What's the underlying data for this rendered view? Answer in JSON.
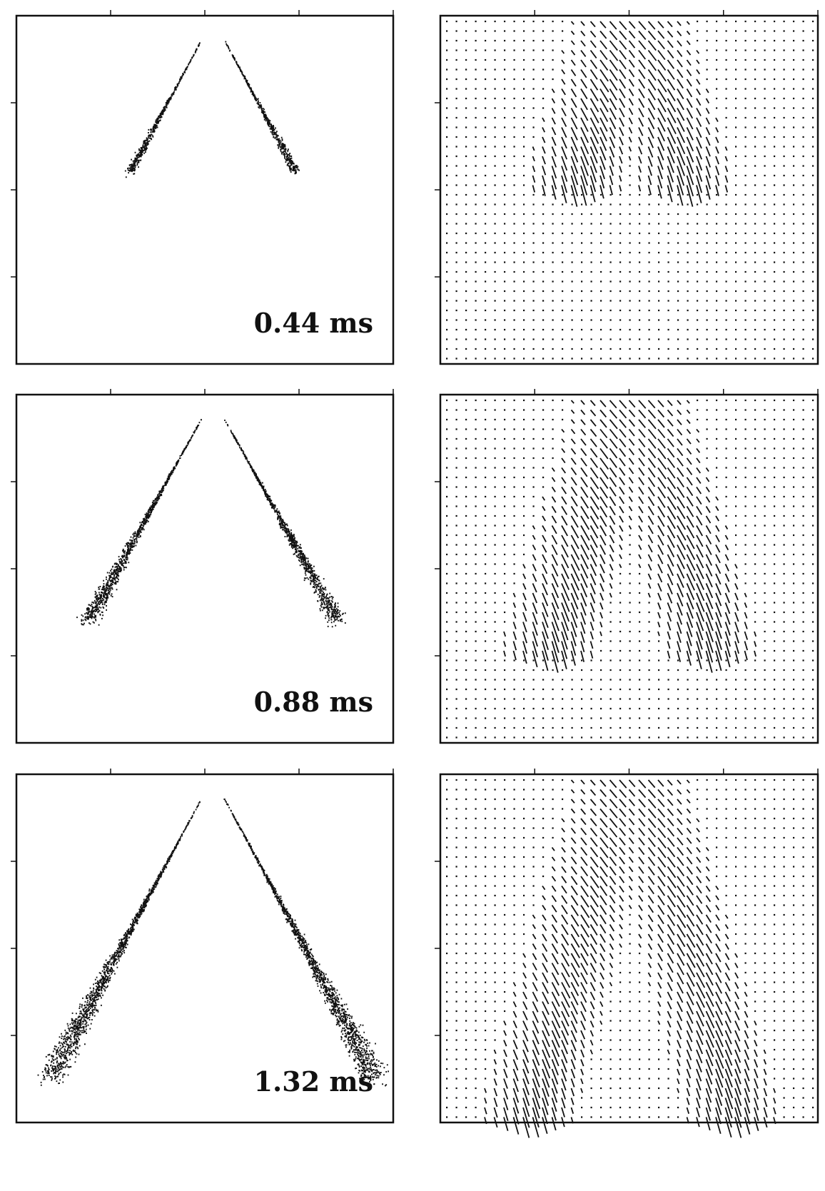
{
  "panels": [
    {
      "label": "0.44 ms"
    },
    {
      "label": "0.88 ms"
    },
    {
      "label": "1.32 ms"
    }
  ]
}
